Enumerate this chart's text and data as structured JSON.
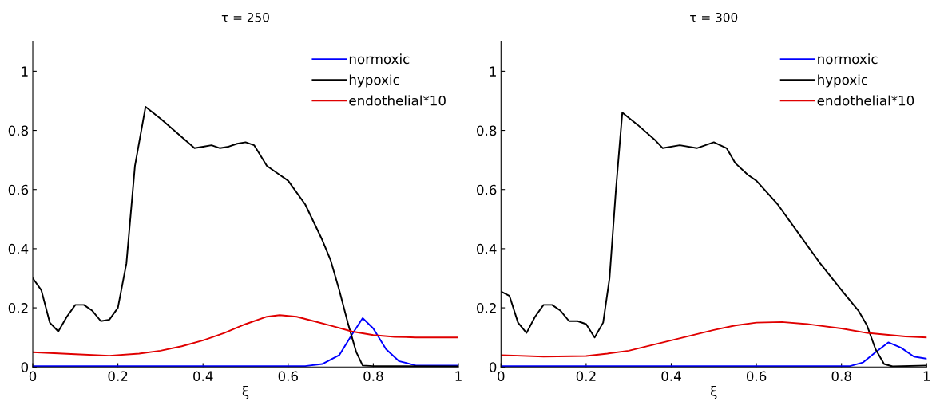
{
  "chart_data": [
    {
      "type": "line",
      "title": "τ = 250",
      "xlabel": "ξ",
      "xlim": [
        0,
        1
      ],
      "ylim": [
        0,
        1.1
      ],
      "xticks": [
        0,
        0.2,
        0.4,
        0.6,
        0.8,
        1
      ],
      "yticks": [
        0,
        0.2,
        0.4,
        0.6,
        0.8,
        1
      ],
      "legend": "top right",
      "grid": false,
      "series": [
        {
          "name": "normoxic",
          "color": "#0000ff",
          "x": [
            0,
            0.64,
            0.68,
            0.72,
            0.75,
            0.775,
            0.8,
            0.83,
            0.86,
            0.9,
            1
          ],
          "values": [
            0.003,
            0.003,
            0.01,
            0.04,
            0.11,
            0.165,
            0.13,
            0.06,
            0.02,
            0.005,
            0.005
          ]
        },
        {
          "name": "hypoxic",
          "color": "#000000",
          "x": [
            0,
            0.02,
            0.04,
            0.06,
            0.08,
            0.1,
            0.12,
            0.14,
            0.16,
            0.18,
            0.2,
            0.22,
            0.24,
            0.265,
            0.3,
            0.34,
            0.38,
            0.4,
            0.42,
            0.44,
            0.46,
            0.48,
            0.5,
            0.52,
            0.55,
            0.58,
            0.6,
            0.64,
            0.68,
            0.7,
            0.72,
            0.74,
            0.76,
            0.775,
            0.8,
            1
          ],
          "values": [
            0.3,
            0.26,
            0.15,
            0.12,
            0.17,
            0.21,
            0.21,
            0.19,
            0.155,
            0.16,
            0.2,
            0.35,
            0.68,
            0.88,
            0.84,
            0.79,
            0.74,
            0.745,
            0.75,
            0.74,
            0.745,
            0.755,
            0.76,
            0.75,
            0.68,
            0.65,
            0.63,
            0.55,
            0.43,
            0.36,
            0.26,
            0.15,
            0.05,
            0.005,
            0.003,
            0.002
          ]
        },
        {
          "name": "endothelial*10",
          "color": "#e00000",
          "x": [
            0,
            0.1,
            0.18,
            0.25,
            0.3,
            0.35,
            0.4,
            0.45,
            0.5,
            0.55,
            0.58,
            0.62,
            0.66,
            0.7,
            0.75,
            0.8,
            0.85,
            0.9,
            1
          ],
          "values": [
            0.05,
            0.043,
            0.038,
            0.045,
            0.055,
            0.07,
            0.09,
            0.115,
            0.145,
            0.17,
            0.175,
            0.17,
            0.155,
            0.14,
            0.12,
            0.108,
            0.102,
            0.1,
            0.1
          ]
        }
      ]
    },
    {
      "type": "line",
      "title": "τ = 300",
      "xlabel": "ξ",
      "xlim": [
        0,
        1
      ],
      "ylim": [
        0,
        1.1
      ],
      "xticks": [
        0,
        0.2,
        0.4,
        0.6,
        0.8,
        1
      ],
      "yticks": [
        0,
        0.2,
        0.4,
        0.6,
        0.8,
        1
      ],
      "legend": "top right",
      "grid": false,
      "series": [
        {
          "name": "normoxic",
          "color": "#0000ff",
          "x": [
            0,
            0.82,
            0.85,
            0.88,
            0.91,
            0.94,
            0.97,
            1
          ],
          "values": [
            0.003,
            0.003,
            0.015,
            0.05,
            0.083,
            0.065,
            0.035,
            0.028
          ]
        },
        {
          "name": "hypoxic",
          "color": "#000000",
          "x": [
            0,
            0.02,
            0.04,
            0.06,
            0.08,
            0.1,
            0.12,
            0.14,
            0.16,
            0.18,
            0.2,
            0.22,
            0.24,
            0.255,
            0.27,
            0.285,
            0.32,
            0.36,
            0.38,
            0.42,
            0.46,
            0.5,
            0.53,
            0.55,
            0.58,
            0.6,
            0.65,
            0.7,
            0.75,
            0.8,
            0.84,
            0.86,
            0.88,
            0.9,
            0.92,
            1
          ],
          "values": [
            0.255,
            0.24,
            0.15,
            0.115,
            0.17,
            0.21,
            0.21,
            0.19,
            0.155,
            0.155,
            0.145,
            0.1,
            0.15,
            0.3,
            0.6,
            0.86,
            0.82,
            0.77,
            0.74,
            0.75,
            0.74,
            0.76,
            0.74,
            0.69,
            0.65,
            0.63,
            0.55,
            0.45,
            0.35,
            0.26,
            0.19,
            0.14,
            0.06,
            0.01,
            0.002,
            0.005
          ]
        },
        {
          "name": "endothelial*10",
          "color": "#e00000",
          "x": [
            0,
            0.1,
            0.2,
            0.25,
            0.3,
            0.4,
            0.5,
            0.55,
            0.6,
            0.66,
            0.72,
            0.8,
            0.86,
            0.9,
            0.95,
            1
          ],
          "values": [
            0.04,
            0.035,
            0.037,
            0.045,
            0.055,
            0.09,
            0.125,
            0.14,
            0.15,
            0.152,
            0.145,
            0.13,
            0.115,
            0.11,
            0.103,
            0.1
          ]
        }
      ]
    }
  ]
}
